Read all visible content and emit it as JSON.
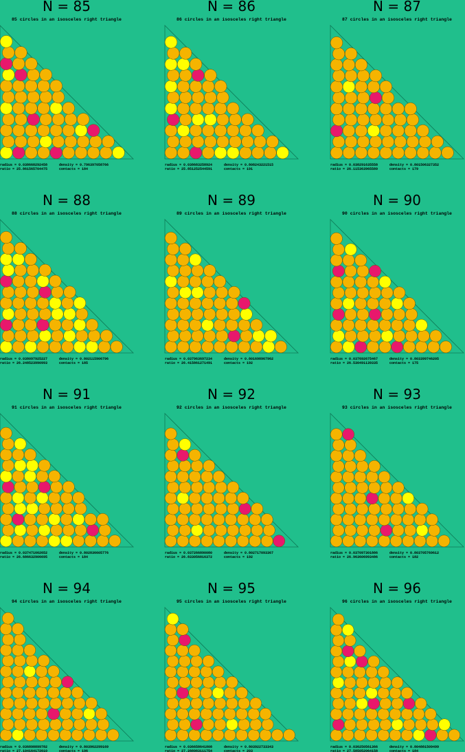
{
  "panels": [
    {
      "title": "N = 85",
      "subtitle": "85 circles in an isosceles right triangle",
      "radius": "radius =  0.038668292458",
      "density": "density = 0.796397058766",
      "ratio": "ratio  =  25.861565704475",
      "contacts": "contacts = 184"
    },
    {
      "title": "N = 86",
      "subtitle": "86 circles in an isosceles right triangle",
      "radius": "radius =  0.038683258924",
      "density": "density = 0.808243221515",
      "ratio": "ratio  =  25.851252544591",
      "contacts": "contacts = 191"
    },
    {
      "title": "N = 87",
      "subtitle": "87 circles in an isosceles right triangle",
      "radius": "radius =  0.038291635558",
      "density": "density = 0.801506327352",
      "ratio": "ratio  =  26.115363965589",
      "contacts": "contacts = 179"
    },
    {
      "title": "N = 88",
      "subtitle": "88 circles in an isosceles right triangle",
      "radius": "radius =  0.038097925227",
      "density": "density = 0.802115906796",
      "ratio": "ratio  =  26.248523990993",
      "contacts": "contacts = 185"
    },
    {
      "title": "N = 89",
      "subtitle": "89 circles in an isosceles right triangle",
      "radius": "radius =  0.037963697234",
      "density": "density = 0.801698967962",
      "ratio": "ratio  =  26.415861271491",
      "contacts": "contacts = 192"
    },
    {
      "title": "N = 90",
      "subtitle": "90 circles in an isosceles right triangle",
      "radius": "radius =  0.037692675467",
      "density": "density = 0.803399746205",
      "ratio": "ratio  =  26.530491139335",
      "contacts": "contacts = 175"
    },
    {
      "title": "N = 91",
      "subtitle": "91 circles in an isosceles right triangle",
      "radius": "radius =  0.037471662652",
      "density": "density = 0.802836605776",
      "ratio": "ratio  =  26.686632906695",
      "contacts": "contacts = 184"
    },
    {
      "title": "N = 92",
      "subtitle": "92 circles in an isosceles right triangle",
      "radius": "radius =  0.037266890080",
      "density": "density = 0.802717093367",
      "ratio": "ratio  =  26.833056816372",
      "contacts": "contacts = 192"
    },
    {
      "title": "N = 93",
      "subtitle": "93 circles in an isosceles right triangle",
      "radius": "radius =  0.037097301886",
      "density": "density = 0.803705769612",
      "ratio": "ratio  =  26.963606993486",
      "contacts": "contacts = 182"
    },
    {
      "title": "N = 94",
      "subtitle": "94 circles in an isosceles right triangle",
      "radius": "radius =  0.036898899782",
      "density": "density = 0.803962299169",
      "ratio": "ratio  =  27.104164172610",
      "contacts": "contacts = 196"
    },
    {
      "title": "N = 95",
      "subtitle": "95 circles in an isosceles right triangle",
      "radius": "radius =  0.036658641808",
      "density": "density = 0.803922733343",
      "ratio": "ratio  =  27.288983111754",
      "contacts": "contacts = 203"
    },
    {
      "title": "N = 96",
      "subtitle": "96 circles in an isosceles right triangle",
      "radius": "radius =  0.036250561366",
      "density": "density = 0.804881509499",
      "ratio": "ratio  =  27.585052064158",
      "contacts": "contacts = 184"
    }
  ]
}
